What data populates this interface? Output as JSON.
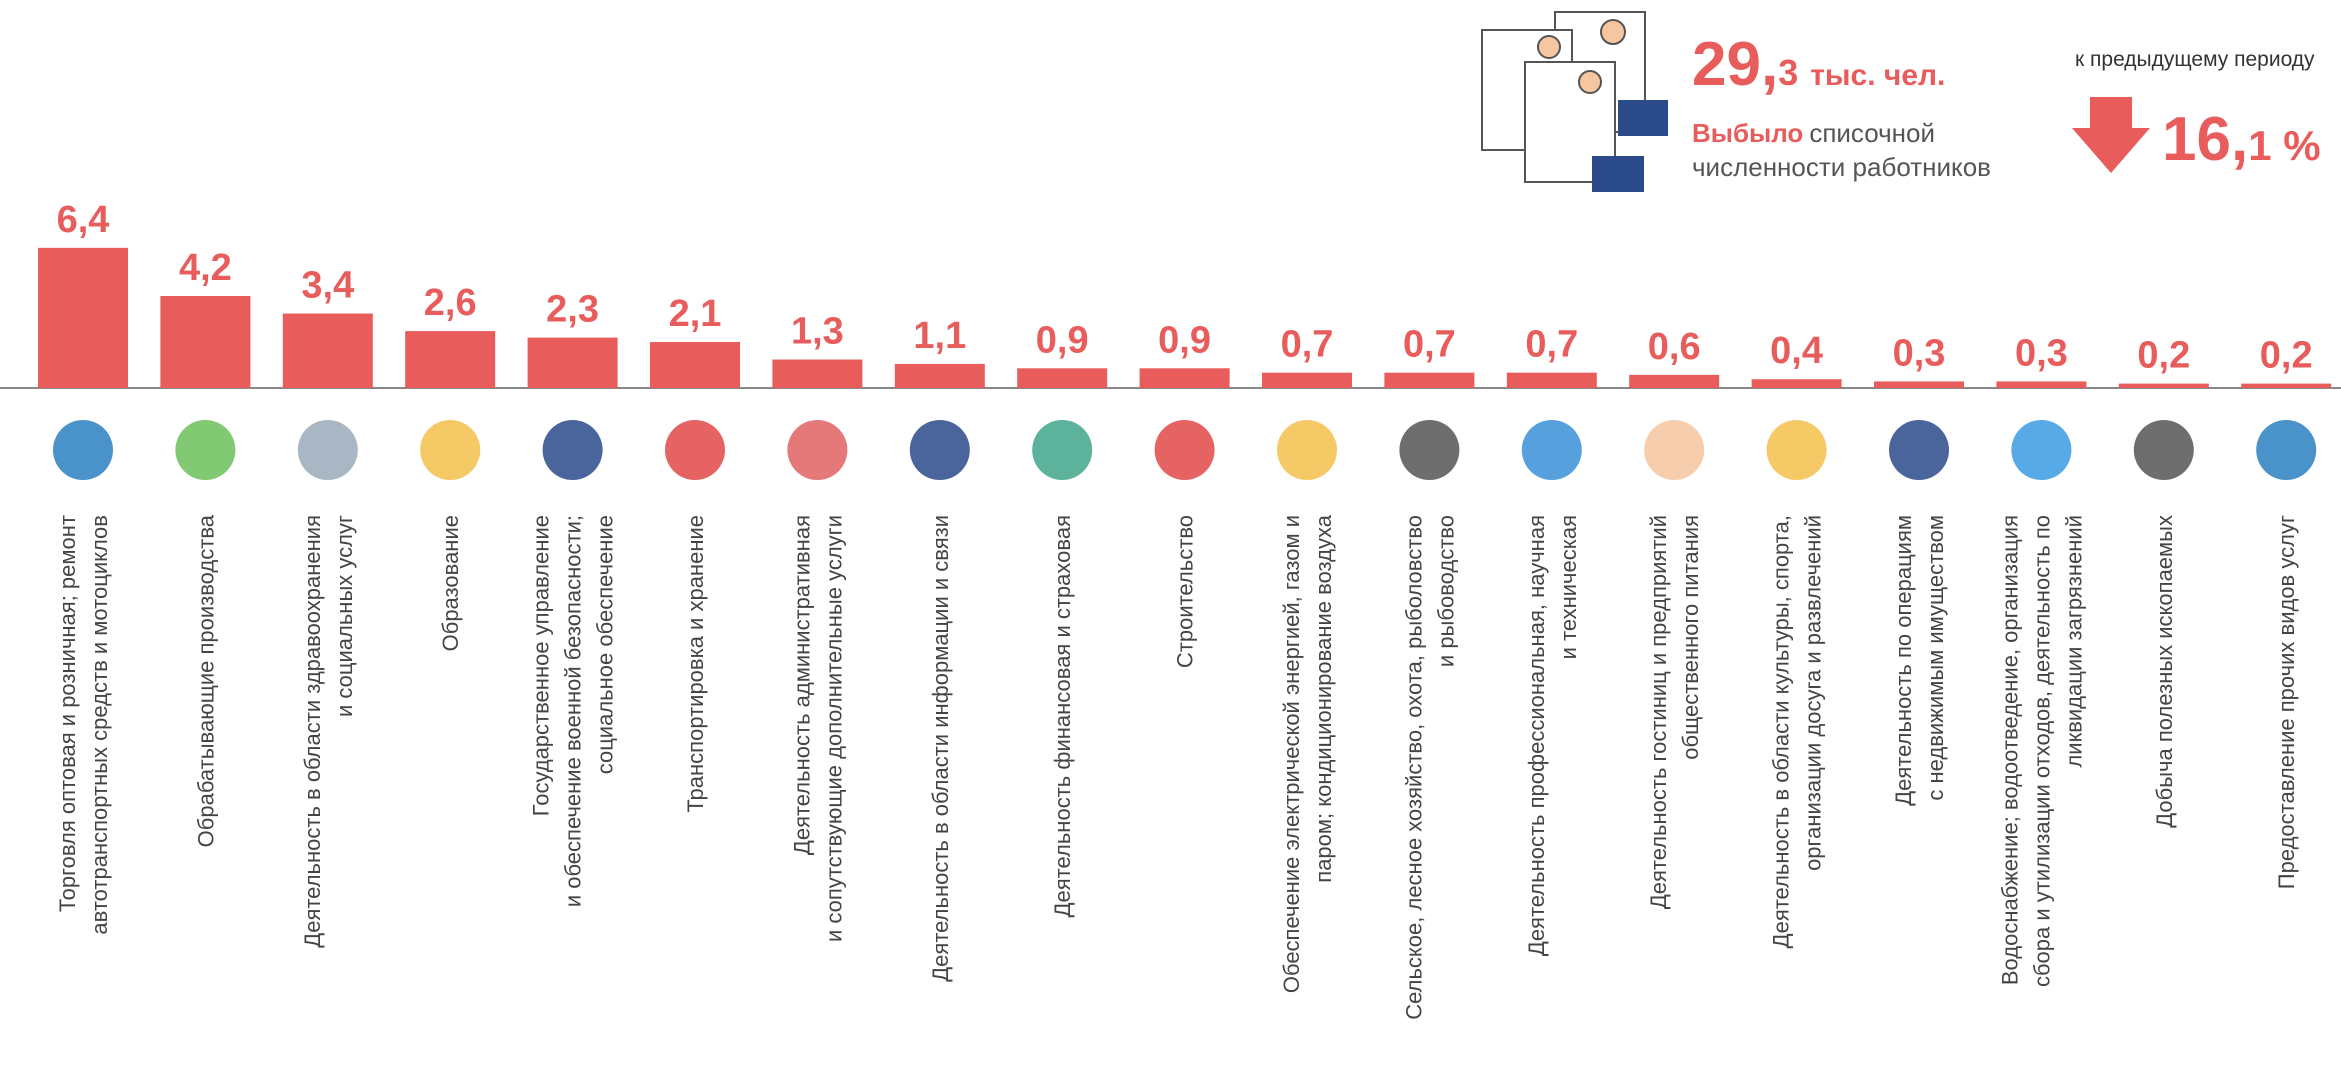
{
  "header": {
    "total_big": "29,",
    "total_small": "3",
    "total_unit": "тыс. чел.",
    "desc_bold": "Выбыло",
    "desc_rest": "списочной",
    "desc_line2": "численности работников",
    "change_caption": "к предыдущему периоду",
    "change_big": "16,",
    "change_small": "1 %"
  },
  "chart_data": {
    "type": "bar",
    "color": "#e85c5c",
    "categories": [
      [
        "Торговля оптовая и розничная; ремонт",
        "автотранспортных средств и мотоциклов"
      ],
      [
        "Обрабатывающие производства"
      ],
      [
        "Деятельность в области здравоохранения",
        "и социальных услуг"
      ],
      [
        "Образование"
      ],
      [
        "Государственное управление",
        "и обеспечение военной безопасности;",
        "социальное обеспечение"
      ],
      [
        "Транспортировка и хранение"
      ],
      [
        "Деятельность административная",
        "и сопутствующие дополнительные услуги"
      ],
      [
        "Деятельность в области информации и связи"
      ],
      [
        "Деятельность финансовая и страховая"
      ],
      [
        "Строительство"
      ],
      [
        "Обеспечение электрической энергией, газом и",
        "паром; кондиционирование воздуха"
      ],
      [
        "Сельское, лесное хозяйство, охота, рыболовство",
        "и рыбоводство"
      ],
      [
        "Деятельность  профессиональная, научная",
        "и техническая"
      ],
      [
        "Деятельность гостиниц и предприятий",
        "общественного питания"
      ],
      [
        "Деятельность в области культуры, спорта,",
        "организации досуга и развлечений"
      ],
      [
        "Деятельность по операциям",
        "с недвижимым имуществом"
      ],
      [
        "Водоснабжение;  водоотведение, организация",
        "сбора и утилизации отходов, деятельность по",
        "ликвидации загрязнений"
      ],
      [
        "Добыча полезных ископаемых"
      ],
      [
        "Предоставление прочих видов услуг"
      ]
    ],
    "values": [
      6.4,
      4.2,
      3.4,
      2.6,
      2.3,
      2.1,
      1.3,
      1.1,
      0.9,
      0.9,
      0.7,
      0.7,
      0.7,
      0.6,
      0.4,
      0.3,
      0.3,
      0.2,
      0.2
    ],
    "value_labels": [
      "6,4",
      "4,2",
      "3,4",
      "2,6",
      "2,3",
      "2,1",
      "1,3",
      "1,1",
      "0,9",
      "0,9",
      "0,7",
      "0,7",
      "0,7",
      "0,6",
      "0,4",
      "0,3",
      "0,3",
      "0,2",
      "0,2"
    ]
  }
}
